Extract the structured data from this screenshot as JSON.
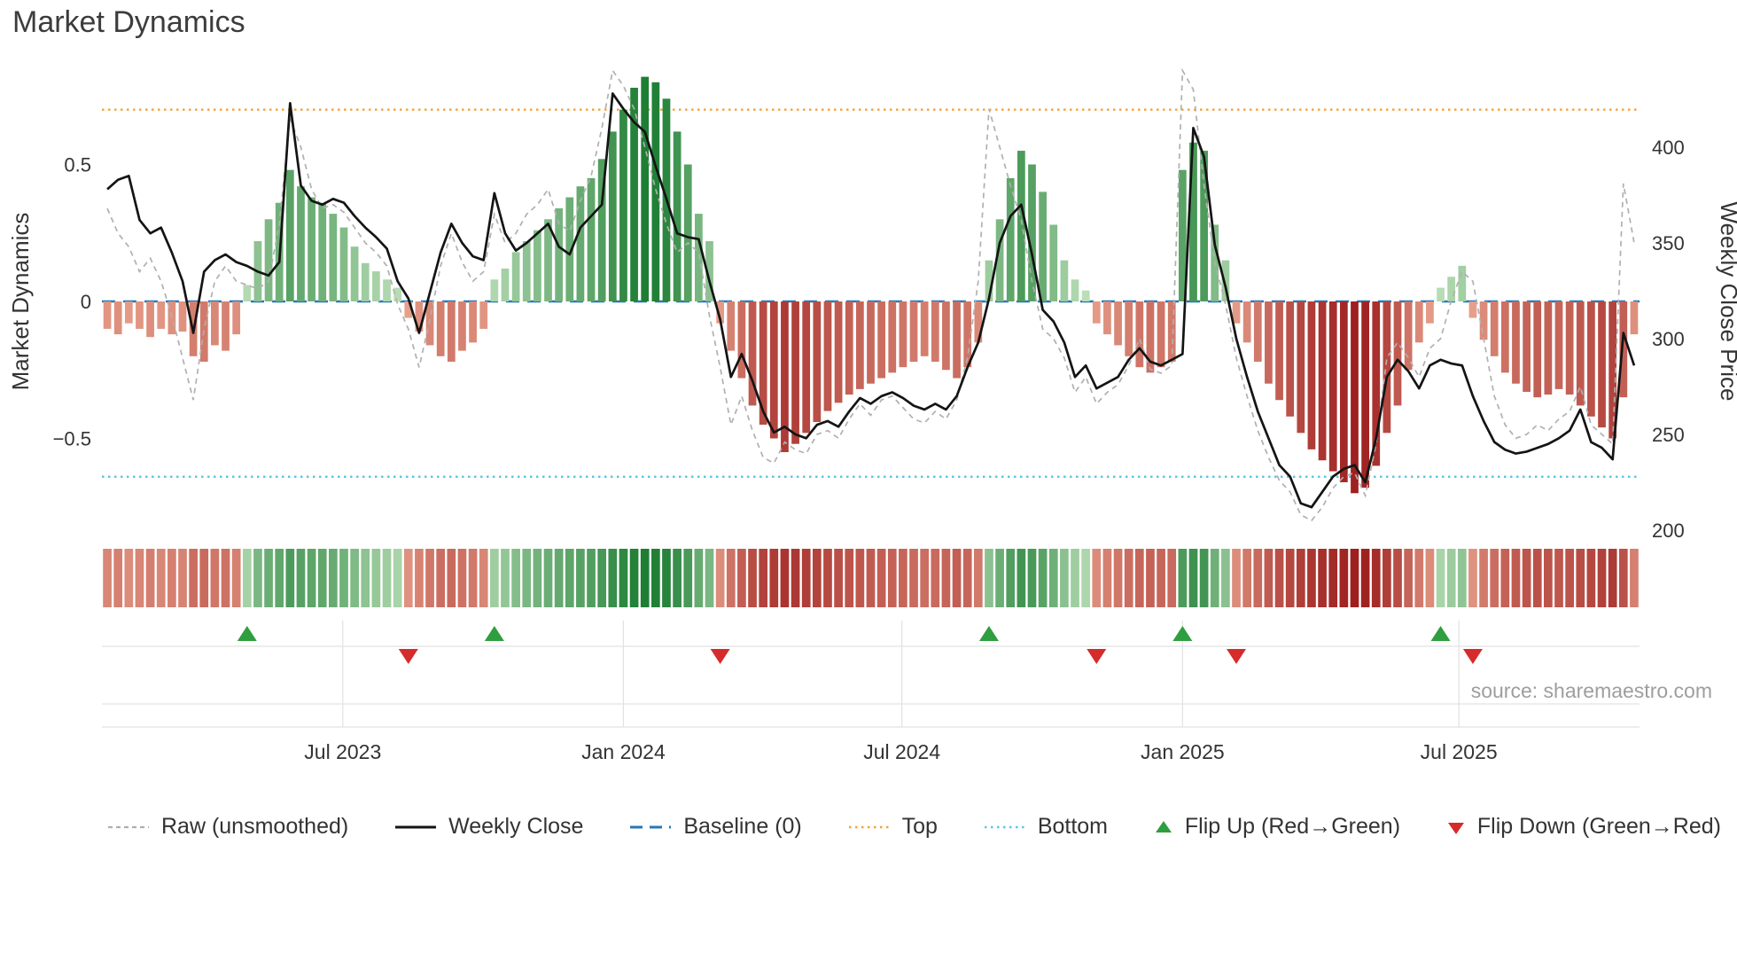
{
  "title": "Market Dynamics",
  "source": "source: sharemaestro.com",
  "axes": {
    "left_label": "Market Dynamics",
    "right_label": "Weekly Close Price",
    "left_ticks": [
      {
        "label": "0.5",
        "value": 0.5
      },
      {
        "label": "0",
        "value": 0
      },
      {
        "label": "−0.5",
        "value": -0.5
      }
    ],
    "right_ticks": [
      {
        "label": "400",
        "value": 400
      },
      {
        "label": "350",
        "value": 350
      },
      {
        "label": "300",
        "value": 300
      },
      {
        "label": "250",
        "value": 250
      },
      {
        "label": "200",
        "value": 200
      }
    ],
    "x_ticks": [
      {
        "label": "Jul 2023",
        "index": 21.9
      },
      {
        "label": "Jan 2024",
        "index": 48
      },
      {
        "label": "Jul 2024",
        "index": 73.9
      },
      {
        "label": "Jan 2025",
        "index": 100
      },
      {
        "label": "Jul 2025",
        "index": 125.7
      }
    ]
  },
  "legend": [
    {
      "label": "Raw (unsmoothed)",
      "type": "dashed-line",
      "color": "#b0b0b0"
    },
    {
      "label": "Weekly Close",
      "type": "solid-line",
      "color": "#141414"
    },
    {
      "label": "Baseline (0)",
      "type": "long-dash-line",
      "color": "#2878b4"
    },
    {
      "label": "Top",
      "type": "dotted-line",
      "color": "#f2a33c"
    },
    {
      "label": "Bottom",
      "type": "dotted-line",
      "color": "#5ac8e6"
    },
    {
      "label": "Flip Up (Red→Green)",
      "type": "triangle-up",
      "color": "#2f9e3f"
    },
    {
      "label": "Flip Down (Green→Red)",
      "type": "triangle-down",
      "color": "#d62b2b"
    }
  ],
  "chart_data": {
    "type": "bar+line",
    "title": "Market Dynamics",
    "ylabel_left": "Market Dynamics",
    "ylabel_right": "Weekly Close Price",
    "ylim_left": [
      -0.88,
      0.86
    ],
    "ylim_right": [
      195,
      445
    ],
    "baseline": 0,
    "top_threshold": 0.7,
    "bottom_threshold": -0.64,
    "x_tick_labels": [
      "Jul 2023",
      "Jan 2024",
      "Jul 2024",
      "Jan 2025",
      "Jul 2025"
    ],
    "x_tick_index": [
      21.9,
      48,
      73.9,
      100,
      125.7
    ],
    "dynamics": [
      -0.1,
      -0.12,
      -0.08,
      -0.1,
      -0.13,
      -0.1,
      -0.12,
      -0.11,
      -0.2,
      -0.22,
      -0.16,
      -0.18,
      -0.12,
      0.06,
      0.22,
      0.3,
      0.36,
      0.48,
      0.42,
      0.38,
      0.36,
      0.32,
      0.27,
      0.2,
      0.14,
      0.11,
      0.08,
      0.05,
      -0.06,
      -0.11,
      -0.16,
      -0.2,
      -0.22,
      -0.18,
      -0.15,
      -0.1,
      0.08,
      0.12,
      0.18,
      0.22,
      0.26,
      0.3,
      0.34,
      0.38,
      0.42,
      0.45,
      0.52,
      0.62,
      0.7,
      0.78,
      0.82,
      0.8,
      0.74,
      0.62,
      0.5,
      0.32,
      0.22,
      -0.08,
      -0.18,
      -0.28,
      -0.38,
      -0.45,
      -0.5,
      -0.55,
      -0.52,
      -0.48,
      -0.44,
      -0.4,
      -0.37,
      -0.34,
      -0.32,
      -0.3,
      -0.28,
      -0.26,
      -0.24,
      -0.22,
      -0.2,
      -0.22,
      -0.25,
      -0.28,
      -0.24,
      -0.15,
      0.15,
      0.3,
      0.45,
      0.55,
      0.5,
      0.4,
      0.28,
      0.15,
      0.08,
      0.04,
      -0.08,
      -0.12,
      -0.16,
      -0.2,
      -0.24,
      -0.26,
      -0.24,
      -0.22,
      0.48,
      0.58,
      0.55,
      0.28,
      0.15,
      -0.08,
      -0.15,
      -0.22,
      -0.3,
      -0.36,
      -0.42,
      -0.48,
      -0.54,
      -0.58,
      -0.62,
      -0.66,
      -0.7,
      -0.68,
      -0.6,
      -0.48,
      -0.38,
      -0.25,
      -0.15,
      -0.08,
      0.05,
      0.09,
      0.13,
      -0.06,
      -0.14,
      -0.2,
      -0.26,
      -0.3,
      -0.33,
      -0.35,
      -0.34,
      -0.32,
      -0.34,
      -0.38,
      -0.42,
      -0.46,
      -0.5,
      -0.35,
      -0.12
    ],
    "weekly_close": [
      378,
      383,
      385,
      362,
      355,
      358,
      345,
      330,
      303,
      335,
      341,
      344,
      340,
      338,
      335,
      333,
      340,
      423,
      380,
      372,
      370,
      373,
      371,
      364,
      358,
      353,
      347,
      330,
      321,
      303,
      324,
      345,
      360,
      350,
      343,
      341,
      376,
      355,
      346,
      350,
      355,
      360,
      348,
      344,
      358,
      364,
      370,
      428,
      420,
      413,
      408,
      390,
      373,
      355,
      353,
      352,
      330,
      310,
      280,
      292,
      278,
      262,
      251,
      254,
      250,
      248,
      255,
      257,
      254,
      262,
      269,
      266,
      270,
      272,
      269,
      265,
      263,
      266,
      263,
      270,
      285,
      298,
      321,
      350,
      364,
      370,
      344,
      315,
      309,
      298,
      280,
      286,
      274,
      277,
      280,
      289,
      295,
      288,
      286,
      289,
      292,
      410,
      395,
      349,
      327,
      300,
      280,
      262,
      248,
      234,
      228,
      214,
      212,
      220,
      228,
      232,
      234,
      225,
      248,
      280,
      289,
      283,
      274,
      286,
      289,
      287,
      286,
      270,
      257,
      246,
      242,
      240,
      241,
      243,
      245,
      248,
      252,
      263,
      246,
      243,
      237,
      303,
      286
    ],
    "raw": [
      368,
      355,
      348,
      335,
      342,
      330,
      312,
      290,
      268,
      305,
      330,
      338,
      330,
      328,
      326,
      330,
      360,
      415,
      400,
      378,
      368,
      370,
      366,
      358,
      350,
      345,
      338,
      318,
      305,
      285,
      310,
      338,
      355,
      340,
      330,
      335,
      365,
      350,
      355,
      365,
      370,
      378,
      360,
      356,
      372,
      385,
      410,
      440,
      432,
      420,
      400,
      378,
      360,
      345,
      350,
      345,
      312,
      285,
      255,
      270,
      252,
      238,
      235,
      246,
      242,
      240,
      250,
      252,
      248,
      258,
      266,
      260,
      268,
      270,
      264,
      258,
      256,
      262,
      258,
      268,
      290,
      330,
      420,
      400,
      380,
      362,
      330,
      305,
      300,
      290,
      272,
      280,
      266,
      272,
      276,
      286,
      300,
      284,
      282,
      286,
      440,
      430,
      380,
      340,
      318,
      290,
      270,
      252,
      238,
      226,
      220,
      208,
      205,
      212,
      222,
      228,
      230,
      218,
      245,
      290,
      298,
      290,
      280,
      295,
      300,
      320,
      335,
      330,
      300,
      270,
      255,
      248,
      250,
      255,
      252,
      258,
      262,
      275,
      255,
      250,
      245,
      381,
      350
    ],
    "flip_up_index": [
      13,
      36,
      82,
      100,
      124
    ],
    "flip_down_index": [
      28,
      57,
      92,
      105,
      127
    ],
    "colors": {
      "raw": "#b0b0b0",
      "close": "#141414",
      "baseline": "#2878b4",
      "top": "#f2a33c",
      "bottom": "#5ac8e6",
      "flip_up": "#2f9e3f",
      "flip_down": "#d62b2b",
      "bar_pos_light": "#c9e7c4",
      "bar_pos_dark": "#1e7e34",
      "bar_neg_light": "#f3b49c",
      "bar_neg_dark": "#9c1d1d",
      "grid": "#e2e2e2"
    }
  }
}
